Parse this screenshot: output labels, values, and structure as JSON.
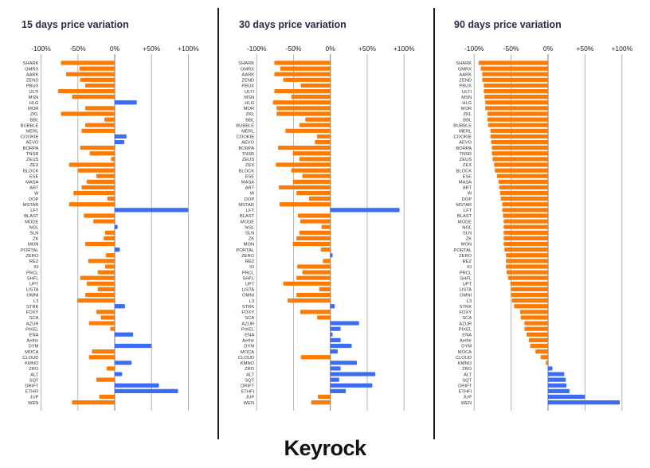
{
  "colors": {
    "negative": "#FF7A00",
    "positive": "#3B6CF2",
    "grid": "#b5b5b5",
    "zero": "#777777",
    "title": "#2b2b4a"
  },
  "logo_text": "Keyrock",
  "chart_data": [
    {
      "type": "bar",
      "orientation": "horizontal",
      "title": "15 days price variation",
      "xlim": [
        -100,
        100
      ],
      "xticks": [
        "-100%",
        "-50%",
        "0%",
        "+50%",
        "+100%"
      ],
      "xtick_values": [
        -100,
        -50,
        0,
        50,
        100
      ],
      "grid": true,
      "unit": "%",
      "categories": [
        "SHARK",
        "GMRX",
        "AARK",
        "ZEND",
        "PBUX",
        "ULTI",
        "MSN",
        "HLG",
        "MOR",
        "ZKL",
        "BBL",
        "BUBBLE",
        "MERL",
        "COOKIE",
        "AEVO",
        "BORPA",
        "TNSR",
        "ZEUS",
        "ZEX",
        "BLOCK",
        "ESE",
        "MASA",
        "ART",
        "W",
        "DOP",
        "MSTAR",
        "LFT",
        "BLAST",
        "MODE",
        "NGL",
        "SLN",
        "ZK",
        "MON",
        "PORTAL",
        "ZERO",
        "REZ",
        "IO",
        "PRCL",
        "SHFL",
        "UPT",
        "LISTA",
        "OMNI",
        "L3",
        "STRK",
        "FOXY",
        "SCA",
        "AZUR",
        "PIXEL",
        "ENA",
        "Aethir",
        "DYM",
        "MOCA",
        "CLOUD",
        "KMNO",
        "ZRO",
        "ALT",
        "SQT",
        "DRIFT",
        "ETHFI",
        "JUP",
        "WEN"
      ],
      "values": [
        -73,
        -48,
        -66,
        -47,
        -40,
        -77,
        -58,
        30,
        -40,
        -73,
        -14,
        -40,
        -45,
        16,
        13,
        -47,
        -34,
        -5,
        -62,
        -50,
        -25,
        -38,
        -45,
        -56,
        -10,
        -62,
        100,
        -42,
        -29,
        4,
        -13,
        -15,
        -40,
        7,
        -12,
        -36,
        -13,
        -23,
        -47,
        -38,
        -23,
        -40,
        -51,
        14,
        -25,
        -19,
        -35,
        -6,
        25,
        0,
        50,
        -31,
        -35,
        23,
        -11,
        10,
        -25,
        60,
        86,
        -21,
        -58
      ]
    },
    {
      "type": "bar",
      "orientation": "horizontal",
      "title": "30 days price variation",
      "xlim": [
        -100,
        100
      ],
      "xticks": [
        "-100%",
        "-50%",
        "0%",
        "+50%",
        "+100%"
      ],
      "xtick_values": [
        -100,
        -50,
        0,
        50,
        100
      ],
      "grid": true,
      "unit": "%",
      "categories": [
        "SHARK",
        "GMRX",
        "AARK",
        "ZEND",
        "PBUX",
        "ULTI",
        "MSN",
        "HLG",
        "MOR",
        "ZKL",
        "BBL",
        "BUBBLE",
        "MERL",
        "COOKIE",
        "AEVO",
        "BORPA",
        "TNSR",
        "ZEUS",
        "ZEX",
        "BLOCK",
        "ESE",
        "MASA",
        "ART",
        "W",
        "DOP",
        "MSTAR",
        "LFT",
        "BLAST",
        "MODE",
        "NGL",
        "SLN",
        "ZK",
        "MON",
        "PORTAL",
        "ZERO",
        "REZ",
        "IO",
        "PRCL",
        "SHFL",
        "UPT",
        "LISTA",
        "OMNI",
        "L3",
        "STRK",
        "FOXY",
        "SCA",
        "AZUR",
        "PIXEL",
        "ENA",
        "Aethir",
        "DYM",
        "MOCA",
        "CLOUD",
        "KMNO",
        "ZRO",
        "ALT",
        "SQT",
        "DRIFT",
        "ETHFI",
        "JUP",
        "WEN"
      ],
      "values": [
        -76,
        -68,
        -76,
        -64,
        -40,
        -76,
        -53,
        -78,
        -73,
        -73,
        -34,
        -42,
        -61,
        -18,
        -21,
        -71,
        -51,
        -42,
        -74,
        -53,
        -38,
        -51,
        -70,
        -46,
        -29,
        -69,
        94,
        -44,
        -41,
        -12,
        -42,
        -46,
        -51,
        -13,
        3,
        -10,
        -45,
        -38,
        -46,
        -64,
        -15,
        -46,
        -58,
        6,
        -41,
        -18,
        39,
        14,
        3,
        14,
        29,
        10,
        -40,
        36,
        14,
        61,
        12,
        57,
        21,
        -17,
        -26
      ]
    },
    {
      "type": "bar",
      "orientation": "horizontal",
      "title": "90 days price variation",
      "xlim": [
        -100,
        100
      ],
      "xticks": [
        "-100%",
        "-50%",
        "0%",
        "+50%",
        "+100%"
      ],
      "xtick_values": [
        -100,
        -50,
        0,
        50,
        100
      ],
      "grid": true,
      "unit": "%",
      "categories": [
        "SHARK",
        "GMRX",
        "AARK",
        "ZEND",
        "PBUX",
        "ULTI",
        "MSN",
        "HLG",
        "MOR",
        "ZKL",
        "BBL",
        "BUBBLE",
        "MERL",
        "COOKIE",
        "AEVO",
        "BORPA",
        "TNSR",
        "ZEUS",
        "ZEX",
        "BLOCK",
        "ESE",
        "MASA",
        "ART",
        "W",
        "DOP",
        "MSTAR",
        "LFT",
        "BLAST",
        "MODE",
        "NGL",
        "SLN",
        "ZK",
        "MON",
        "PORTAL",
        "ZERO",
        "REZ",
        "IO",
        "PRCL",
        "SHFL",
        "UPT",
        "LISTA",
        "OMNI",
        "L3",
        "STRK",
        "FOXY",
        "SCA",
        "AZUR",
        "PIXEL",
        "ENA",
        "Aethir",
        "DYM",
        "MOCA",
        "CLOUD",
        "KMNO",
        "ZRO",
        "ALT",
        "SQT",
        "DRIFT",
        "ETHFI",
        "JUP",
        "WEN"
      ],
      "values": [
        -94,
        -91,
        -89,
        -89,
        -87,
        -87,
        -86,
        -85,
        -85,
        -82,
        -82,
        -81,
        -78,
        -78,
        -77,
        -76,
        -76,
        -75,
        -73,
        -72,
        -69,
        -67,
        -66,
        -65,
        -64,
        -62,
        -62,
        -61,
        -60,
        -60,
        -60,
        -60,
        -60,
        -59,
        -57,
        -57,
        -57,
        -56,
        -54,
        -51,
        -50,
        -50,
        -49,
        -46,
        -38,
        -37,
        -32,
        -32,
        -29,
        -26,
        -24,
        -17,
        -10,
        -3,
        6,
        22,
        24,
        25,
        29,
        50,
        97
      ]
    }
  ]
}
